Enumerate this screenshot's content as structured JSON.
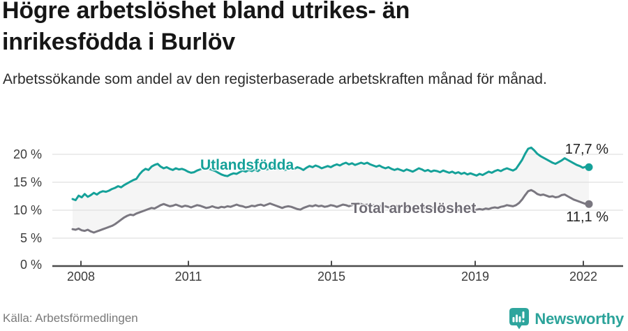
{
  "header": {
    "title": "Högre arbetslöshet bland utrikes- än inrikesfödda i Burlöv",
    "subtitle": "Arbetssökande som andel av den registerbaserade arbetskraften månad för månad."
  },
  "chart_data": {
    "type": "line",
    "title": "Högre arbetslöshet bland utrikes- än inrikesfödda i Burlöv",
    "subtitle": "Arbetssökande som andel av den registerbaserade arbetskraften månad för månad.",
    "unit": "%",
    "x_period": "2008–2022, månadsvisa värden",
    "x_ticks": [
      "2008",
      "2011",
      "2015",
      "2019",
      "2022"
    ],
    "y_ticks": [
      "0 %",
      "5 %",
      "10 %",
      "15 %",
      "20 %"
    ],
    "ylim": [
      0,
      22
    ],
    "grid": true,
    "area_fill": "#f5f5f5",
    "legend_position": "inline-labels",
    "series": [
      {
        "name": "Utlandsfödda",
        "color": "#15a199",
        "end_label": "17,7 %",
        "end_value": 17.7,
        "values": [
          12.0,
          11.8,
          12.6,
          12.3,
          12.9,
          12.4,
          12.7,
          13.1,
          12.8,
          13.2,
          13.4,
          13.3,
          13.5,
          13.8,
          14.0,
          14.3,
          14.1,
          14.5,
          14.8,
          15.1,
          15.4,
          15.6,
          16.4,
          17.0,
          17.4,
          17.2,
          17.8,
          18.1,
          18.3,
          17.8,
          17.5,
          17.7,
          17.4,
          17.2,
          17.5,
          17.3,
          17.4,
          17.2,
          16.9,
          16.7,
          16.8,
          17.1,
          17.3,
          17.5,
          17.6,
          17.4,
          17.2,
          17.0,
          16.7,
          16.4,
          16.2,
          16.1,
          16.4,
          16.6,
          16.5,
          16.8,
          17.1,
          16.9,
          17.2,
          17.0,
          17.3,
          17.0,
          17.4,
          17.6,
          17.3,
          17.5,
          17.8,
          17.6,
          17.3,
          17.5,
          17.2,
          17.4,
          17.6,
          17.4,
          17.7,
          17.5,
          17.2,
          17.6,
          17.9,
          17.7,
          18.0,
          17.8,
          17.5,
          17.7,
          17.9,
          17.7,
          18.0,
          18.2,
          18.0,
          18.3,
          18.5,
          18.2,
          18.4,
          18.1,
          18.3,
          18.5,
          18.3,
          18.5,
          18.2,
          18.0,
          17.8,
          18.0,
          17.7,
          17.5,
          17.7,
          17.4,
          17.2,
          17.4,
          17.2,
          17.0,
          17.3,
          17.1,
          16.9,
          17.2,
          17.5,
          17.3,
          17.0,
          17.2,
          16.9,
          17.1,
          17.0,
          16.8,
          17.1,
          16.9,
          16.7,
          16.9,
          16.6,
          16.8,
          16.5,
          16.7,
          16.4,
          16.6,
          16.4,
          16.2,
          16.5,
          16.3,
          16.6,
          16.9,
          16.7,
          17.0,
          17.2,
          17.0,
          17.3,
          17.5,
          17.3,
          17.1,
          17.4,
          18.2,
          19.0,
          20.1,
          21.0,
          21.2,
          20.7,
          20.1,
          19.7,
          19.4,
          19.1,
          18.8,
          18.5,
          18.3,
          18.6,
          18.9,
          19.3,
          19.0,
          18.7,
          18.4,
          18.1,
          17.9,
          17.6,
          17.8,
          17.7
        ]
      },
      {
        "name": "Total arbetslöshet",
        "color": "#7a7780",
        "end_label": "11,1 %",
        "end_value": 11.1,
        "values": [
          6.6,
          6.5,
          6.7,
          6.4,
          6.3,
          6.5,
          6.2,
          6.0,
          6.2,
          6.4,
          6.6,
          6.8,
          7.0,
          7.2,
          7.5,
          7.9,
          8.3,
          8.7,
          9.0,
          9.2,
          9.1,
          9.4,
          9.6,
          9.8,
          10.0,
          10.2,
          10.4,
          10.3,
          10.6,
          10.9,
          11.1,
          10.9,
          10.7,
          10.8,
          11.0,
          10.8,
          10.6,
          10.8,
          10.7,
          10.5,
          10.7,
          10.9,
          10.8,
          10.6,
          10.4,
          10.5,
          10.7,
          10.5,
          10.4,
          10.6,
          10.5,
          10.7,
          10.6,
          10.8,
          11.0,
          10.8,
          10.7,
          10.5,
          10.6,
          10.8,
          10.7,
          10.9,
          11.0,
          10.8,
          11.0,
          11.2,
          11.0,
          10.8,
          10.6,
          10.4,
          10.6,
          10.7,
          10.6,
          10.4,
          10.2,
          10.1,
          10.4,
          10.6,
          10.8,
          10.7,
          10.9,
          10.7,
          10.8,
          10.6,
          10.7,
          10.9,
          10.8,
          10.6,
          10.8,
          11.0,
          10.9,
          10.7,
          10.9,
          11.1,
          11.3,
          11.1,
          10.9,
          11.0,
          10.8,
          10.9,
          10.7,
          10.8,
          10.6,
          10.7,
          10.5,
          10.6,
          10.8,
          10.7,
          10.6,
          10.7,
          10.5,
          10.6,
          10.4,
          10.5,
          10.7,
          10.6,
          10.4,
          10.3,
          10.4,
          10.5,
          10.4,
          10.3,
          10.4,
          10.2,
          10.3,
          10.1,
          10.2,
          10.0,
          10.1,
          10.2,
          10.0,
          10.1,
          10.0,
          10.1,
          10.2,
          10.1,
          10.3,
          10.2,
          10.4,
          10.5,
          10.4,
          10.6,
          10.7,
          10.9,
          10.8,
          10.7,
          10.9,
          11.3,
          11.9,
          12.7,
          13.4,
          13.6,
          13.3,
          12.9,
          12.7,
          12.8,
          12.6,
          12.4,
          12.5,
          12.3,
          12.4,
          12.7,
          12.8,
          12.5,
          12.2,
          11.9,
          11.7,
          11.5,
          11.3,
          11.1,
          11.1
        ]
      }
    ]
  },
  "footer": {
    "source": "Källa: Arbetsförmedlingen",
    "brand": "Newsworthy"
  },
  "colors": {
    "accent_teal": "#15a199",
    "series_gray": "#7a7780",
    "gridline": "#e0e0e0",
    "axis": "#4b4b4b",
    "brand_teal": "#2ba39a"
  }
}
